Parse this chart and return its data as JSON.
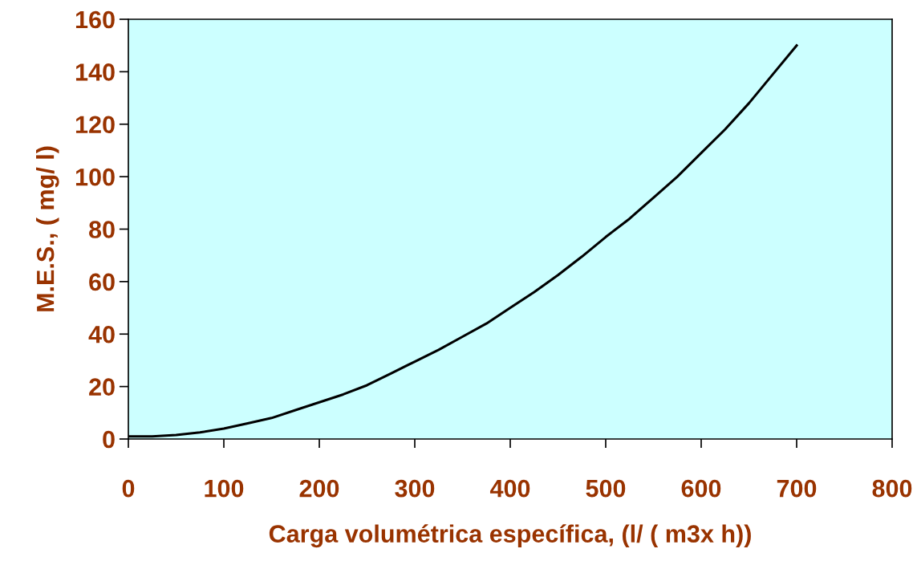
{
  "chart_data": {
    "type": "line",
    "xlabel": "Carga volumétrica específica, (l/ ( m3x h))",
    "ylabel": "M.E.S., ( mg/ l)",
    "x": [
      0,
      25,
      50,
      75,
      100,
      125,
      150,
      175,
      200,
      225,
      250,
      275,
      300,
      325,
      350,
      375,
      400,
      425,
      450,
      475,
      500,
      525,
      550,
      575,
      600,
      625,
      650,
      675,
      700
    ],
    "series": [
      {
        "color": "#000000",
        "values": [
          1,
          1,
          1.5,
          2.5,
          4,
          6,
          8,
          11,
          14,
          17,
          20.5,
          25,
          29.5,
          34,
          39,
          44,
          50,
          56,
          62.5,
          69.5,
          77,
          84,
          92,
          100,
          109,
          118,
          128,
          139,
          150
        ]
      }
    ],
    "xlim": [
      0,
      800
    ],
    "xticks": [
      0,
      100,
      200,
      300,
      400,
      500,
      600,
      700,
      800
    ],
    "ylim": [
      0,
      160
    ],
    "yticks": [
      0,
      20,
      40,
      60,
      80,
      100,
      120,
      140,
      160
    ],
    "grid": false,
    "legend": false,
    "marker": "none",
    "line_style": "solid"
  }
}
